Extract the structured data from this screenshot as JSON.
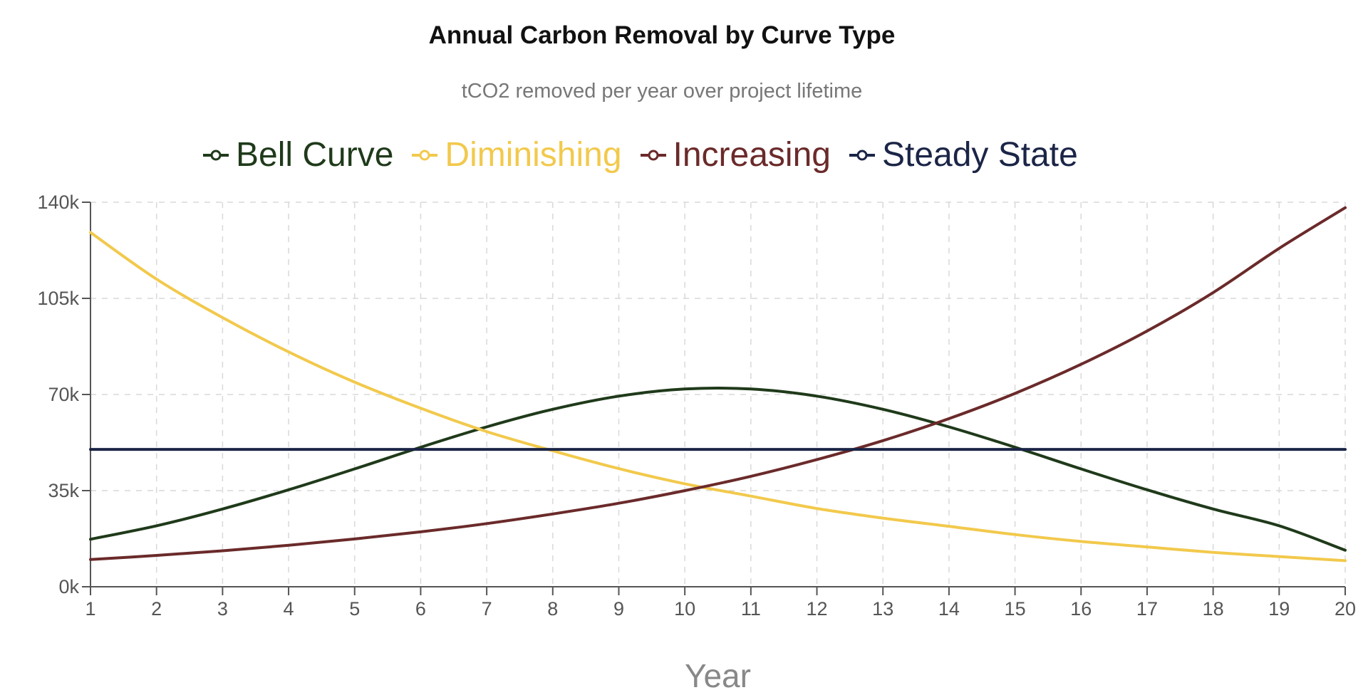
{
  "chart_data": {
    "type": "line",
    "title": "Annual Carbon Removal by Curve Type",
    "subtitle": "tCO2 removed per year over project lifetime",
    "xlabel": "Year",
    "ylabel": "",
    "categories": [
      "1",
      "2",
      "3",
      "4",
      "5",
      "6",
      "7",
      "8",
      "9",
      "10",
      "11",
      "12",
      "13",
      "14",
      "15",
      "16",
      "17",
      "18",
      "19",
      "20"
    ],
    "x": [
      1,
      2,
      3,
      4,
      5,
      6,
      7,
      8,
      9,
      10,
      11,
      12,
      13,
      14,
      15,
      16,
      17,
      18,
      19,
      20
    ],
    "xlim": [
      1,
      20
    ],
    "ylim": [
      0,
      140000
    ],
    "yticks": [
      0,
      35000,
      70000,
      105000,
      140000
    ],
    "ytick_labels": [
      "0k",
      "35k",
      "70k",
      "105k",
      "140k"
    ],
    "grid": true,
    "legend_position": "top",
    "series": [
      {
        "name": "Bell Curve",
        "color": "#1f3a1a",
        "values": [
          17300,
          22200,
          28300,
          35300,
          42900,
          50800,
          58200,
          64600,
          69400,
          72000,
          72000,
          69400,
          64600,
          58200,
          50800,
          42900,
          35300,
          28300,
          22200,
          13300
        ]
      },
      {
        "name": "Diminishing",
        "color": "#f2c94c",
        "values": [
          129000,
          112000,
          98000,
          85500,
          74500,
          65000,
          56500,
          49500,
          43000,
          37500,
          33000,
          28500,
          25000,
          22000,
          19000,
          16500,
          14500,
          12500,
          11000,
          9500
        ]
      },
      {
        "name": "Increasing",
        "color": "#6b2a2a",
        "values": [
          9900,
          11400,
          13100,
          15100,
          17400,
          20000,
          23000,
          26500,
          30400,
          35000,
          40200,
          46300,
          53200,
          61200,
          70400,
          81000,
          93100,
          107100,
          123200,
          138000
        ]
      },
      {
        "name": "Steady State",
        "color": "#1b2547",
        "values": [
          50000,
          50000,
          50000,
          50000,
          50000,
          50000,
          50000,
          50000,
          50000,
          50000,
          50000,
          50000,
          50000,
          50000,
          50000,
          50000,
          50000,
          50000,
          50000,
          50000
        ]
      }
    ]
  }
}
